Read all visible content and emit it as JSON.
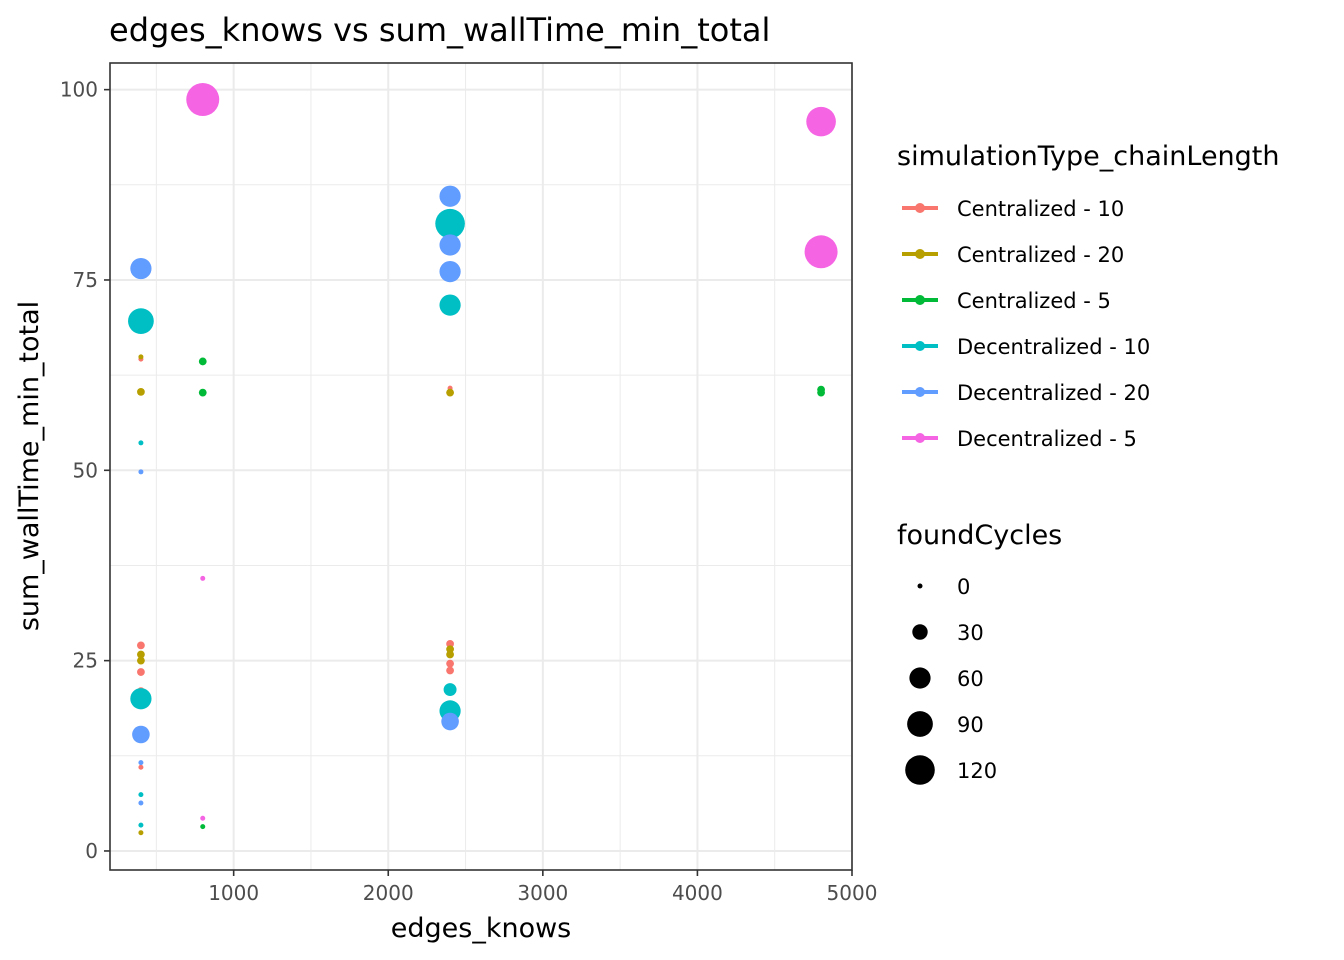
{
  "chart_data": {
    "type": "scatter",
    "title": "edges_knows  vs  sum_wallTime_min_total",
    "xlabel": "edges_knows",
    "ylabel": "sum_wallTime_min_total",
    "xlim": [
      200,
      5000
    ],
    "ylim": [
      -2.5,
      103.5
    ],
    "x_ticks": [
      1000,
      2000,
      3000,
      4000,
      5000
    ],
    "y_ticks": [
      0,
      25,
      50,
      75,
      100
    ],
    "grid": true,
    "color_legend": {
      "title": "simulationType_chainLength",
      "placement": "right",
      "entries": [
        {
          "name": "Centralized - 10",
          "color": "#F8766D"
        },
        {
          "name": "Centralized - 20",
          "color": "#B79F00"
        },
        {
          "name": "Centralized - 5",
          "color": "#00BA38"
        },
        {
          "name": "Decentralized - 10",
          "color": "#00BFC4"
        },
        {
          "name": "Decentralized - 20",
          "color": "#619CFF"
        },
        {
          "name": "Decentralized - 5",
          "color": "#F564E3"
        }
      ]
    },
    "size_legend": {
      "title": "foundCycles",
      "placement": "right",
      "entries": [
        0,
        30,
        60,
        90,
        120
      ]
    },
    "series": [
      {
        "name": "Centralized - 10",
        "color": "#F8766D",
        "points": [
          {
            "x": 400,
            "y": 64.6,
            "size": 0
          },
          {
            "x": 400,
            "y": 27.0,
            "size": 5
          },
          {
            "x": 400,
            "y": 23.5,
            "size": 5
          },
          {
            "x": 400,
            "y": 21.0,
            "size": 5
          },
          {
            "x": 400,
            "y": 11.0,
            "size": 0
          },
          {
            "x": 2400,
            "y": 60.8,
            "size": 0
          },
          {
            "x": 2400,
            "y": 27.2,
            "size": 5
          },
          {
            "x": 2400,
            "y": 24.6,
            "size": 5
          },
          {
            "x": 2400,
            "y": 23.7,
            "size": 5
          }
        ]
      },
      {
        "name": "Centralized - 20",
        "color": "#B79F00",
        "points": [
          {
            "x": 400,
            "y": 64.9,
            "size": 0
          },
          {
            "x": 400,
            "y": 60.3,
            "size": 5
          },
          {
            "x": 400,
            "y": 25.8,
            "size": 5
          },
          {
            "x": 400,
            "y": 25.0,
            "size": 5
          },
          {
            "x": 400,
            "y": 2.4,
            "size": 0
          },
          {
            "x": 2400,
            "y": 60.2,
            "size": 5
          },
          {
            "x": 2400,
            "y": 26.5,
            "size": 5
          },
          {
            "x": 2400,
            "y": 25.8,
            "size": 5
          }
        ]
      },
      {
        "name": "Centralized - 5",
        "color": "#00BA38",
        "points": [
          {
            "x": 800,
            "y": 64.3,
            "size": 5
          },
          {
            "x": 800,
            "y": 60.2,
            "size": 5
          },
          {
            "x": 800,
            "y": 3.2,
            "size": 0
          },
          {
            "x": 4800,
            "y": 60.6,
            "size": 5
          },
          {
            "x": 4800,
            "y": 60.2,
            "size": 5
          }
        ]
      },
      {
        "name": "Decentralized - 10",
        "color": "#00BFC4",
        "points": [
          {
            "x": 400,
            "y": 69.6,
            "size": 90
          },
          {
            "x": 400,
            "y": 53.6,
            "size": 0
          },
          {
            "x": 400,
            "y": 20.0,
            "size": 60
          },
          {
            "x": 400,
            "y": 7.4,
            "size": 0
          },
          {
            "x": 400,
            "y": 3.4,
            "size": 0
          },
          {
            "x": 2400,
            "y": 82.4,
            "size": 120
          },
          {
            "x": 2400,
            "y": 71.7,
            "size": 60
          },
          {
            "x": 2400,
            "y": 21.2,
            "size": 20
          },
          {
            "x": 2400,
            "y": 18.4,
            "size": 60
          }
        ]
      },
      {
        "name": "Decentralized - 20",
        "color": "#619CFF",
        "points": [
          {
            "x": 400,
            "y": 76.5,
            "size": 60
          },
          {
            "x": 400,
            "y": 49.8,
            "size": 0
          },
          {
            "x": 400,
            "y": 15.3,
            "size": 40
          },
          {
            "x": 400,
            "y": 11.6,
            "size": 0
          },
          {
            "x": 400,
            "y": 6.3,
            "size": 0
          },
          {
            "x": 2400,
            "y": 86.0,
            "size": 60
          },
          {
            "x": 2400,
            "y": 79.6,
            "size": 60
          },
          {
            "x": 2400,
            "y": 76.1,
            "size": 60
          },
          {
            "x": 2400,
            "y": 17.0,
            "size": 40
          }
        ]
      },
      {
        "name": "Decentralized - 5",
        "color": "#F564E3",
        "points": [
          {
            "x": 800,
            "y": 98.7,
            "size": 150
          },
          {
            "x": 800,
            "y": 35.8,
            "size": 0
          },
          {
            "x": 800,
            "y": 4.3,
            "size": 0
          },
          {
            "x": 4800,
            "y": 95.8,
            "size": 120
          },
          {
            "x": 4800,
            "y": 78.7,
            "size": 150
          }
        ]
      }
    ]
  }
}
